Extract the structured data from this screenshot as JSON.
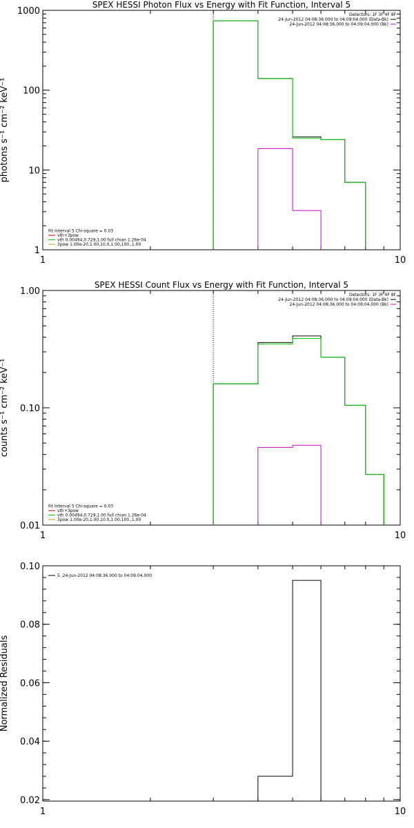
{
  "chart_data": [
    {
      "type": "line",
      "title": "SPEX HESSI Photon Flux vs Energy with Fit Function, Interval 5",
      "ylabel": "photons s⁻¹ cm⁻² keV⁻¹",
      "xlabel": "",
      "xscale": "log",
      "yscale": "log",
      "xlim": [
        1,
        10
      ],
      "ylim": [
        1,
        1000
      ],
      "xticks": [
        {
          "value": 1,
          "label": "1"
        },
        {
          "value": 10,
          "label": "10"
        }
      ],
      "yticks": [
        {
          "value": 1,
          "label": "1"
        },
        {
          "value": 10,
          "label": "10"
        },
        {
          "value": 100,
          "label": "100"
        },
        {
          "value": 1000,
          "label": "1000"
        }
      ],
      "vline": {
        "x": 3.0,
        "style": "dotted"
      },
      "series": [
        {
          "color": "#000000",
          "edges": [
            3.0,
            4.0,
            5.0,
            6.0,
            7.0,
            8.0
          ],
          "values": [
            740,
            140,
            26,
            24,
            7,
            1.1
          ]
        },
        {
          "color": "#00cc00",
          "edges": [
            3.0,
            4.0,
            5.0,
            6.0,
            7.0,
            8.0
          ],
          "values": [
            740,
            140,
            25,
            24,
            7,
            1.1
          ]
        },
        {
          "color": "#cc00cc",
          "edges": [
            4.0,
            5.0,
            6.0
          ],
          "values": [
            18.5,
            3.1
          ]
        }
      ],
      "legend_top": {
        "position": "top-right",
        "header": "Detectors: 1F 3F 4F 8F",
        "entries": [
          {
            "label": "24-Jun-2012 04:08:36.000 to 04:09:04.000 (Data-Bk)",
            "color": "#000000"
          },
          {
            "label": "24-Jun-2012 04:08:36.000 to 04:09:04.000 (Bk)",
            "color": "#cc00cc"
          }
        ]
      },
      "legend_bottom": {
        "position": "bottom-left",
        "header": "Fit Interval 5   Chi-square = 0.03",
        "entries": [
          {
            "label": "vth+3pow",
            "color": "#cc0000"
          },
          {
            "label": "vth 0.00494,0.729,1.00  full chian 1.26e-04",
            "color": "#00cc00"
          },
          {
            "label": "3pow 1.00e-20,1.00,10.0,1.00,100.,1.00",
            "color": "#cc9900"
          }
        ]
      }
    },
    {
      "type": "line",
      "title": "SPEX HESSI Count Flux vs Energy with Fit Function, Interval 5",
      "ylabel": "counts s⁻¹ cm⁻² keV⁻¹",
      "xlabel": "",
      "xscale": "log",
      "yscale": "log",
      "xlim": [
        1,
        10
      ],
      "ylim": [
        0.01,
        1.0
      ],
      "xticks": [
        {
          "value": 1,
          "label": "1"
        },
        {
          "value": 10,
          "label": "10"
        }
      ],
      "yticks": [
        {
          "value": 0.01,
          "label": "0.01"
        },
        {
          "value": 0.1,
          "label": "0.10"
        },
        {
          "value": 1.0,
          "label": "1.00"
        }
      ],
      "vline": {
        "x": 3.0,
        "style": "dotted"
      },
      "series": [
        {
          "color": "#000000",
          "edges": [
            3.0,
            4.0,
            5.0,
            6.0,
            7.0,
            8.0,
            9.0
          ],
          "values": [
            0.16,
            0.36,
            0.41,
            0.27,
            0.105,
            0.027
          ]
        },
        {
          "color": "#00cc00",
          "edges": [
            3.0,
            4.0,
            5.0,
            6.0,
            7.0,
            8.0,
            9.0
          ],
          "values": [
            0.16,
            0.35,
            0.39,
            0.27,
            0.105,
            0.027
          ]
        },
        {
          "color": "#cc00cc",
          "edges": [
            4.0,
            5.0,
            6.0
          ],
          "values": [
            0.046,
            0.048
          ]
        }
      ],
      "legend_top": {
        "position": "top-right",
        "header": "Detectors: 1F 3F 4F 8F",
        "entries": [
          {
            "label": "24-Jun-2012 04:08:36.000 to 04:09:04.000 (Data-Bk)",
            "color": "#000000"
          },
          {
            "label": "24-Jun-2012 04:08:36.000 to 04:09:04.000 (Bk)",
            "color": "#cc00cc"
          }
        ]
      },
      "legend_bottom": {
        "position": "bottom-left",
        "header": "Fit Interval 5   Chi-square = 0.03",
        "entries": [
          {
            "label": "vth+3pow",
            "color": "#cc0000"
          },
          {
            "label": "vth 0.00494,0.729,1.00  full chian 1.26e-04",
            "color": "#00cc00"
          },
          {
            "label": "3pow 1.00e-20,1.00,10.0,1.00,100.,1.00",
            "color": "#cc9900"
          }
        ]
      }
    },
    {
      "type": "line",
      "title": "",
      "ylabel": "Normalized Residuals",
      "xlabel": "",
      "xscale": "log",
      "yscale": "linear",
      "xlim": [
        1,
        10
      ],
      "ylim": [
        0.0195,
        0.1
      ],
      "xticks": [
        {
          "value": 1,
          "label": "1"
        },
        {
          "value": 10,
          "label": "10"
        }
      ],
      "yticks": [
        {
          "value": 0.02,
          "label": "0.02"
        },
        {
          "value": 0.04,
          "label": "0.04"
        },
        {
          "value": 0.06,
          "label": "0.06"
        },
        {
          "value": 0.08,
          "label": "0.08"
        },
        {
          "value": 0.1,
          "label": "0.10"
        }
      ],
      "series": [
        {
          "color": "#000000",
          "edges": [
            4.0,
            5.0,
            6.0
          ],
          "values": [
            0.028,
            0.095
          ]
        }
      ],
      "legend_top": {
        "position": "top-left",
        "entries": [
          {
            "label": "5. 24-Jun-2012 04:08:36.000 to 04:09:04.000",
            "color": "#000000"
          }
        ]
      }
    }
  ]
}
